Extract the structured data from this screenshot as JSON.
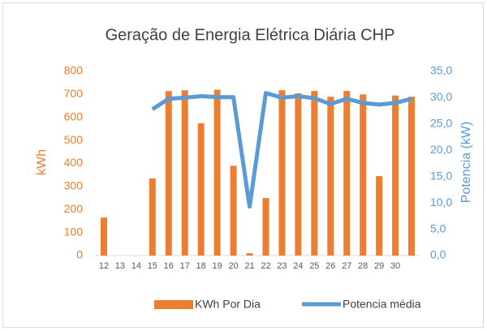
{
  "chart_data": {
    "type": "bar_line",
    "title": "Geração de Energia Elétrica Diária CHP",
    "y_label": "kWh",
    "y2_label": "Potencia  (kW)",
    "categories": [
      "12",
      "13",
      "14",
      "15",
      "16",
      "17",
      "18",
      "19",
      "20",
      "21",
      "22",
      "23",
      "24",
      "25",
      "26",
      "27",
      "28",
      "29",
      "30",
      null
    ],
    "series": [
      {
        "name": "KWh Por Dia",
        "kind": "bar",
        "color": "#ed7d31",
        "values": [
          165,
          0,
          0,
          335,
          715,
          718,
          575,
          720,
          390,
          10,
          250,
          718,
          705,
          715,
          690,
          715,
          700,
          345,
          695,
          690
        ]
      },
      {
        "name": "Potencia média",
        "kind": "line",
        "axis": "y2",
        "color": "#5b9bd5",
        "values": [
          null,
          null,
          null,
          27.8,
          29.8,
          30.0,
          30.3,
          30.1,
          30.1,
          9.3,
          30.9,
          30.0,
          30.3,
          29.9,
          28.8,
          29.8,
          29.0,
          28.7,
          29.0,
          29.8
        ]
      }
    ],
    "ylim": [
      0,
      800
    ],
    "yticks": [
      0,
      100,
      200,
      300,
      400,
      500,
      600,
      700,
      800
    ],
    "y2lim": [
      0,
      35
    ],
    "y2ticks": [
      {
        "value": 0,
        "label": "0,0"
      },
      {
        "value": 5,
        "label": "5,0"
      },
      {
        "value": 10,
        "label": "10,0"
      },
      {
        "value": 15,
        "label": "15,0"
      },
      {
        "value": 20,
        "label": "20,0"
      },
      {
        "value": 25,
        "label": "25,0"
      },
      {
        "value": 30,
        "label": "30,0"
      },
      {
        "value": 35,
        "label": "35,0"
      }
    ],
    "legend": "bottom"
  }
}
